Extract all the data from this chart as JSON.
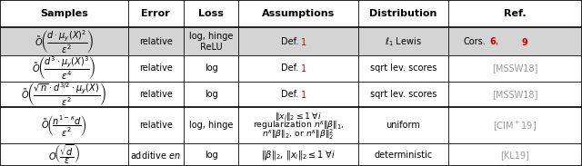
{
  "col_headers": [
    "Samples",
    "Error",
    "Loss",
    "Assumptions",
    "Distribution",
    "Ref."
  ],
  "col_bounds": [
    0.0,
    0.22,
    0.315,
    0.41,
    0.615,
    0.77,
    1.0
  ],
  "row_highlight_color": "#d4d4d4",
  "bg_color": "#ffffff",
  "gray_ref_color": "#999999",
  "red_color": "#cc0000",
  "figsize": [
    6.4,
    1.83
  ],
  "dpi": 100,
  "all_row_tops": [
    1.0,
    0.835,
    0.665,
    0.51,
    0.355,
    0.135
  ],
  "all_row_bottoms": [
    0.835,
    0.665,
    0.51,
    0.355,
    0.135,
    0.0
  ]
}
